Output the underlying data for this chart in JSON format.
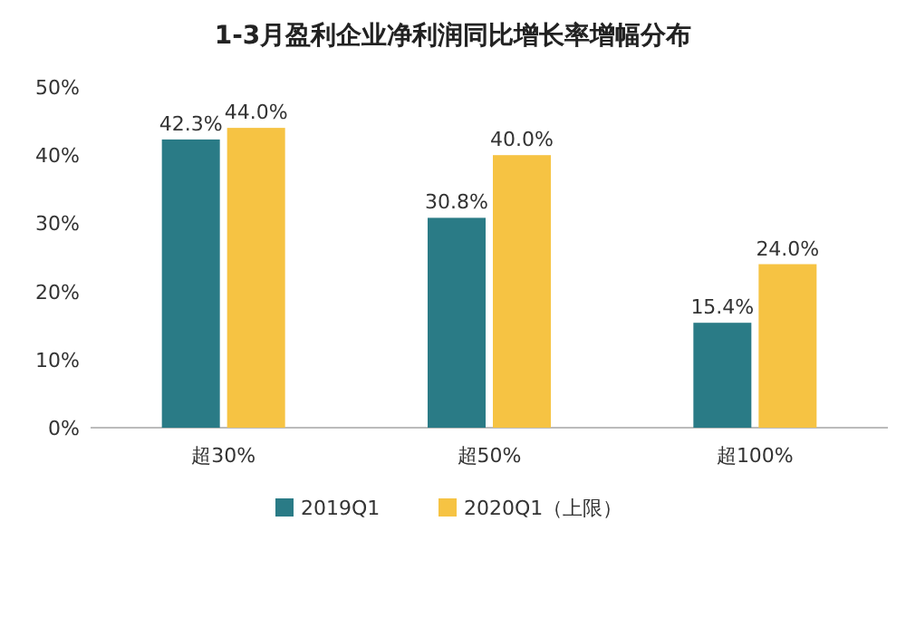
{
  "chart_data": {
    "type": "bar",
    "title": "1-3月盈利企业净利润同比增长率增幅分布",
    "categories": [
      "超30%",
      "超50%",
      "超100%"
    ],
    "series": [
      {
        "name": "2019Q1",
        "color": "#2a7b86",
        "values": [
          42.3,
          30.8,
          15.4
        ],
        "value_labels": [
          "42.3%",
          "30.8%",
          "15.4%"
        ]
      },
      {
        "name": "2020Q1（上限）",
        "color": "#f6c343",
        "values": [
          44.0,
          40.0,
          24.0
        ],
        "value_labels": [
          "44.0%",
          "40.0%",
          "24.0%"
        ]
      }
    ],
    "ylim": [
      0,
      50
    ],
    "yticks": [
      {
        "value": 0,
        "label": "0%"
      },
      {
        "value": 10,
        "label": "10%"
      },
      {
        "value": 20,
        "label": "20%"
      },
      {
        "value": 30,
        "label": "30%"
      },
      {
        "value": 40,
        "label": "40%"
      },
      {
        "value": 50,
        "label": "50%"
      }
    ],
    "legend": "bottom"
  }
}
